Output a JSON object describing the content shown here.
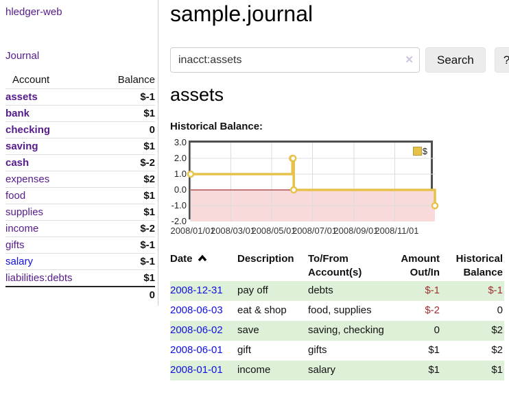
{
  "colors": {
    "link_purple": "#551a8b",
    "link_blue": "#0f0fe0",
    "neg_strong": "#8e1414",
    "neg_soft": "#bf6f6f",
    "neg_table": "#a03030",
    "row_green": "#dff0d8",
    "chart_line": "#e7c24a",
    "chart_neg_bg": "#f8dada",
    "zero_line": "#8b0000"
  },
  "sidebar": {
    "app_title": "hledger-web",
    "journal_label": "Journal",
    "accounts_table": {
      "headers": {
        "account": "Account",
        "balance": "Balance"
      },
      "rows": [
        {
          "name": "assets",
          "balance": "$-1",
          "depth": 1,
          "bold": true
        },
        {
          "name": "bank",
          "balance": "$1",
          "depth": 2,
          "bold": true
        },
        {
          "name": "checking",
          "balance": "0",
          "depth": 3,
          "bold": true
        },
        {
          "name": "saving",
          "balance": "$1",
          "depth": 3,
          "bold": true
        },
        {
          "name": "cash",
          "balance": "$-2",
          "depth": 2,
          "bold": true
        },
        {
          "name": "expenses",
          "balance": "$2",
          "depth": 1,
          "bold": false
        },
        {
          "name": "food",
          "balance": "$1",
          "depth": 2,
          "bold": false
        },
        {
          "name": "supplies",
          "balance": "$1",
          "depth": 2,
          "bold": false
        },
        {
          "name": "income",
          "balance": "$-2",
          "depth": 1,
          "bold": false
        },
        {
          "name": "gifts",
          "balance": "$-1",
          "depth": 2,
          "bold": false
        },
        {
          "name": "salary",
          "balance": "$-1",
          "depth": 2,
          "bold": false,
          "link": "blue"
        },
        {
          "name": "liabilities:debts",
          "balance": "$1",
          "depth": 1,
          "bold": false
        }
      ],
      "total": "0"
    }
  },
  "header": {
    "title": "sample.journal"
  },
  "search": {
    "value": "inacct:assets",
    "clear_icon": "✕",
    "search_label": "Search",
    "help_label": "?"
  },
  "account_page": {
    "title": "assets",
    "chart_label": "Historical Balance:"
  },
  "chart_data": {
    "type": "line",
    "step": true,
    "title": "Historical Balance",
    "series": [
      {
        "name": "$",
        "points": [
          [
            "2008-01-01",
            1
          ],
          [
            "2008-06-01",
            2
          ],
          [
            "2008-06-02",
            2
          ],
          [
            "2008-06-03",
            0
          ],
          [
            "2008-12-31",
            -1
          ]
        ]
      }
    ],
    "x_range": [
      "2008-01-01",
      "2008-12-31"
    ],
    "x_ticks": [
      "2008/01/01",
      "2008/03/01",
      "2008/05/01",
      "2008/07/01",
      "2008/09/01",
      "2008/11/01"
    ],
    "y_ticks": [
      "3.0",
      "2.0",
      "1.0",
      "0.0",
      "-1.0",
      "-2.0"
    ],
    "ylim": [
      -2,
      3
    ],
    "grid": true,
    "legend_position": "top-right",
    "legend": [
      {
        "label": "$"
      }
    ]
  },
  "transactions": {
    "headers": {
      "date": "Date",
      "description": "Description",
      "account": "To/From Account(s)",
      "amount": "Amount Out/In",
      "balance": "Historical Balance"
    },
    "rows": [
      {
        "date": "2008-12-31",
        "description": "pay off",
        "account": "debts",
        "amount": "$-1",
        "balance": "$-1"
      },
      {
        "date": "2008-06-03",
        "description": "eat & shop",
        "account": "food, supplies",
        "amount": "$-2",
        "balance": "0"
      },
      {
        "date": "2008-06-02",
        "description": "save",
        "account": "saving, checking",
        "amount": "0",
        "balance": "$2"
      },
      {
        "date": "2008-06-01",
        "description": "gift",
        "account": "gifts",
        "amount": "$1",
        "balance": "$2"
      },
      {
        "date": "2008-01-01",
        "description": "income",
        "account": "salary",
        "amount": "$1",
        "balance": "$1"
      }
    ]
  }
}
